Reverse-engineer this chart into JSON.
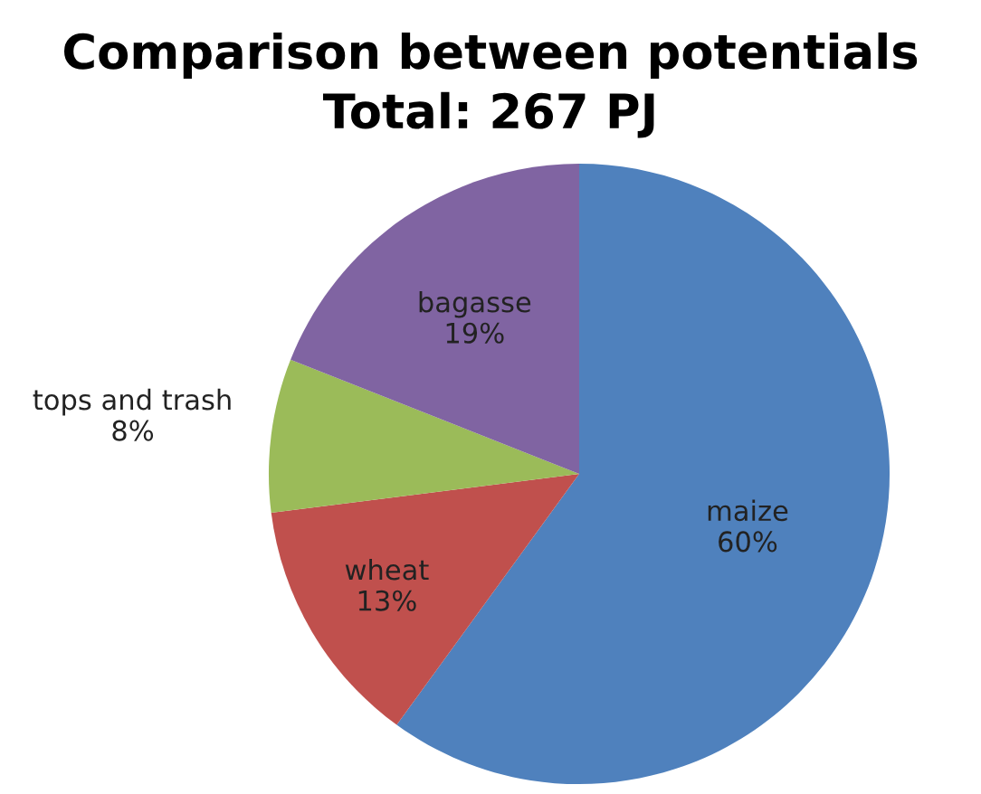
{
  "chart_data": {
    "type": "pie",
    "title": "Comparison between potentials",
    "subtitle": "Total: 267 PJ",
    "categories": [
      "maize",
      "wheat",
      "tops and trash",
      "bagasse"
    ],
    "values": [
      60,
      13,
      8,
      19
    ],
    "value_labels": [
      "60%",
      "13%",
      "8%",
      "19%"
    ],
    "colors": [
      "#4f81bd",
      "#c0504d",
      "#9bbb59",
      "#8064a2"
    ]
  }
}
